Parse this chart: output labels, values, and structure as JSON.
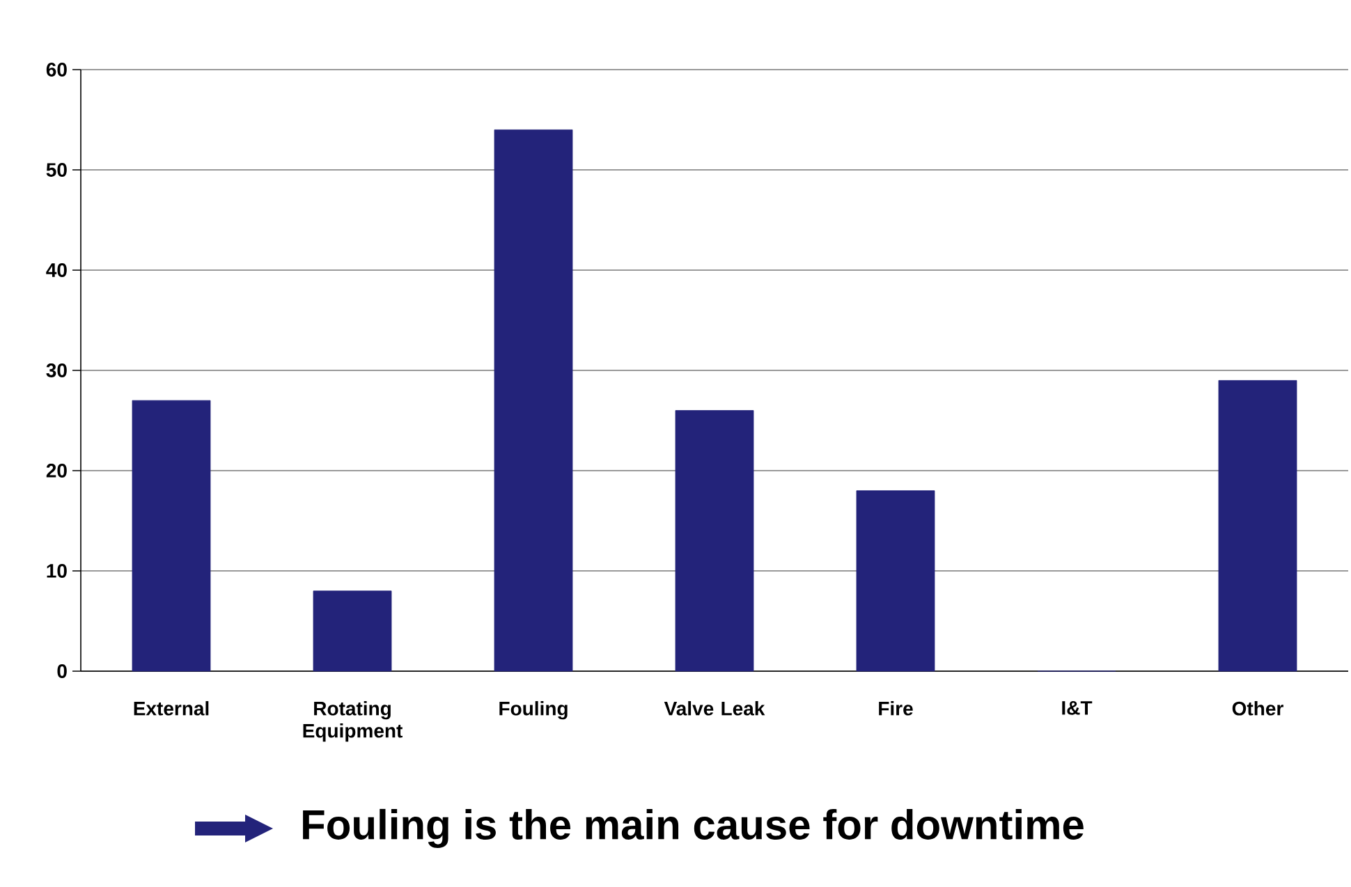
{
  "chart_data": {
    "type": "bar",
    "categories": [
      "External",
      "Rotating Equipment",
      "Fouling",
      "Valve Leak",
      "Fire",
      "I&T",
      "Other"
    ],
    "values": [
      27,
      8,
      54,
      26,
      18,
      0,
      29
    ],
    "color": "#23237a",
    "ylim": [
      0,
      60
    ],
    "yticks": [
      0,
      10,
      20,
      30,
      40,
      50,
      60
    ],
    "grid": "y",
    "annotations": [
      "Fouling is the main cause for downtime"
    ]
  }
}
